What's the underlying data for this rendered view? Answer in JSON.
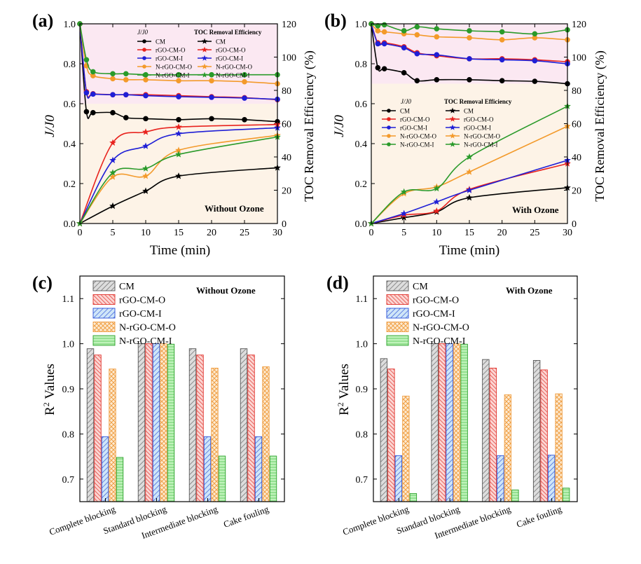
{
  "panels": [
    {
      "id": "a",
      "label": "(a)",
      "annotation": "Without Ozone",
      "legend_header_left": "J/J0",
      "legend_header_right": "TOC Removal Efficiency",
      "chart_data": {
        "type": "line",
        "xlabel": "Time (min)",
        "ylabel": "J/J0",
        "y2label": "TOC Removal Efficiency (%)",
        "xlim": [
          0,
          30
        ],
        "ylim": [
          0,
          1.0
        ],
        "y2lim": [
          0,
          120
        ],
        "xticks": [
          0,
          5,
          10,
          15,
          20,
          25,
          30
        ],
        "yticks": [
          "0.0",
          "0.2",
          "0.4",
          "0.6",
          "0.8",
          "1.0"
        ],
        "y2ticks": [
          0,
          20,
          40,
          60,
          80,
          100,
          120
        ],
        "flux": [
          {
            "name": "CM",
            "color": "#000000",
            "x": [
              0,
              1,
              2,
              5,
              7,
              10,
              15,
              20,
              25,
              30
            ],
            "y": [
              1.0,
              0.56,
              0.555,
              0.555,
              0.53,
              0.525,
              0.52,
              0.525,
              0.52,
              0.51
            ]
          },
          {
            "name": "rGO-CM-O",
            "color": "#e8231e",
            "x": [
              0,
              1,
              2,
              5,
              7,
              10,
              15,
              20,
              25,
              30
            ],
            "y": [
              1.0,
              0.66,
              0.65,
              0.645,
              0.645,
              0.645,
              0.64,
              0.635,
              0.63,
              0.62
            ]
          },
          {
            "name": "rGO-CM-I",
            "color": "#1f1fd6",
            "x": [
              0,
              1,
              2,
              5,
              7,
              10,
              15,
              20,
              25,
              30
            ],
            "y": [
              1.0,
              0.655,
              0.648,
              0.645,
              0.645,
              0.64,
              0.635,
              0.632,
              0.628,
              0.622
            ]
          },
          {
            "name": "N-rGO-CM-O",
            "color": "#f39a2b",
            "x": [
              0,
              1,
              2,
              5,
              7,
              10,
              15,
              20,
              25,
              30
            ],
            "y": [
              1.0,
              0.79,
              0.74,
              0.725,
              0.72,
              0.72,
              0.715,
              0.715,
              0.71,
              0.7
            ]
          },
          {
            "name": "N-rGO-CM-I",
            "color": "#2a9a2a",
            "x": [
              0,
              1,
              2,
              5,
              7,
              10,
              15,
              20,
              25,
              30
            ],
            "y": [
              1.0,
              0.82,
              0.76,
              0.75,
              0.75,
              0.745,
              0.745,
              0.745,
              0.745,
              0.745
            ]
          }
        ],
        "toc": [
          {
            "name": "CM",
            "color": "#000000",
            "x": [
              0,
              5,
              10,
              15,
              30
            ],
            "y": [
              0,
              10.5,
              19.5,
              28.5,
              33.5
            ]
          },
          {
            "name": "rGO-CM-O",
            "color": "#e8231e",
            "x": [
              0,
              5,
              10,
              15,
              30
            ],
            "y": [
              0,
              48.5,
              55,
              58,
              59.5
            ]
          },
          {
            "name": "rGO-CM-I",
            "color": "#1f1fd6",
            "x": [
              0,
              5,
              10,
              15,
              30
            ],
            "y": [
              0,
              38,
              46.5,
              54,
              57.5
            ]
          },
          {
            "name": "N-rGO-CM-O",
            "color": "#f39a2b",
            "x": [
              0,
              5,
              10,
              15,
              30
            ],
            "y": [
              0,
              28,
              28.5,
              44,
              53
            ]
          },
          {
            "name": "N-rGO-CM-I",
            "color": "#2a9a2a",
            "x": [
              0,
              5,
              10,
              15,
              30
            ],
            "y": [
              0,
              30.5,
              33,
              41.5,
              52
            ]
          }
        ]
      }
    },
    {
      "id": "b",
      "label": "(b)",
      "annotation": "With Ozone",
      "legend_header_left": "J/J0",
      "legend_header_right": "TOC Removal Efficiency",
      "chart_data": {
        "type": "line",
        "xlabel": "Time (min)",
        "ylabel": "J/J0",
        "y2label": "TOC Removal Efficiency (%)",
        "xlim": [
          0,
          30
        ],
        "ylim": [
          0,
          1.0
        ],
        "y2lim": [
          0,
          120
        ],
        "xticks": [
          0,
          5,
          10,
          15,
          20,
          25,
          30
        ],
        "yticks": [
          "0.0",
          "0.2",
          "0.4",
          "0.6",
          "0.8",
          "1.0"
        ],
        "y2ticks": [
          0,
          20,
          40,
          60,
          80,
          100,
          120
        ],
        "flux": [
          {
            "name": "CM",
            "color": "#000000",
            "x": [
              0,
              1,
              2,
              5,
              7,
              10,
              15,
              20,
              25,
              30
            ],
            "y": [
              1.0,
              0.78,
              0.775,
              0.755,
              0.715,
              0.72,
              0.72,
              0.715,
              0.712,
              0.7
            ]
          },
          {
            "name": "rGO-CM-O",
            "color": "#e8231e",
            "x": [
              0,
              1,
              2,
              5,
              7,
              10,
              15,
              20,
              25,
              30
            ],
            "y": [
              1.0,
              0.905,
              0.905,
              0.885,
              0.855,
              0.84,
              0.825,
              0.825,
              0.82,
              0.81
            ]
          },
          {
            "name": "rGO-CM-I",
            "color": "#1f1fd6",
            "x": [
              0,
              1,
              2,
              5,
              7,
              10,
              15,
              20,
              25,
              30
            ],
            "y": [
              1.0,
              0.9,
              0.9,
              0.88,
              0.85,
              0.845,
              0.825,
              0.82,
              0.815,
              0.8
            ]
          },
          {
            "name": "N-rGO-CM-O",
            "color": "#f39a2b",
            "x": [
              0,
              1,
              2,
              5,
              7,
              10,
              15,
              20,
              25,
              30
            ],
            "y": [
              1.0,
              0.965,
              0.96,
              0.95,
              0.945,
              0.935,
              0.93,
              0.92,
              0.93,
              0.92
            ]
          },
          {
            "name": "N-rGO-CM-I",
            "color": "#2a9a2a",
            "x": [
              0,
              1,
              2,
              5,
              7,
              10,
              15,
              20,
              25,
              30
            ],
            "y": [
              1.0,
              0.99,
              0.995,
              0.965,
              0.985,
              0.975,
              0.965,
              0.96,
              0.95,
              0.97
            ]
          }
        ],
        "toc": [
          {
            "name": "CM",
            "color": "#000000",
            "x": [
              0,
              5,
              10,
              15,
              30
            ],
            "y": [
              0,
              3.5,
              7,
              15.5,
              21.5
            ]
          },
          {
            "name": "rGO-CM-O",
            "color": "#e8231e",
            "x": [
              0,
              5,
              10,
              15,
              30
            ],
            "y": [
              0,
              5,
              7.5,
              20.5,
              36
            ]
          },
          {
            "name": "rGO-CM-I",
            "color": "#1f1fd6",
            "x": [
              0,
              5,
              10,
              15,
              30
            ],
            "y": [
              0,
              6,
              13,
              20,
              38
            ]
          },
          {
            "name": "N-rGO-CM-O",
            "color": "#f39a2b",
            "x": [
              0,
              5,
              10,
              15,
              30
            ],
            "y": [
              0,
              18,
              22,
              31,
              58.5
            ]
          },
          {
            "name": "N-rGO-CM-I",
            "color": "#2a9a2a",
            "x": [
              0,
              5,
              10,
              15,
              30
            ],
            "y": [
              0,
              19,
              21,
              40,
              70.5
            ]
          }
        ]
      }
    },
    {
      "id": "c",
      "label": "(c)",
      "annotation": "Without Ozone",
      "chart_data": {
        "type": "bar",
        "ylabel": "R2 Values",
        "ylabel_main": "R",
        "ylabel_sup": "2",
        "ylabel_rest": " Values",
        "ylim": [
          0.65,
          1.15
        ],
        "yticks": [
          "0.7",
          "0.8",
          "0.9",
          "1.0",
          "1.1"
        ],
        "categories": [
          "Complete blocking",
          "Standard blocking",
          "Intermediate blocking",
          "Cake fouling"
        ],
        "series": [
          {
            "name": "CM",
            "values": [
              0.989,
              1.0,
              0.989,
              0.989
            ]
          },
          {
            "name": "rGO-CM-O",
            "values": [
              0.975,
              1.0,
              0.975,
              0.975
            ]
          },
          {
            "name": "rGO-CM-I",
            "values": [
              0.794,
              1.0,
              0.794,
              0.794
            ]
          },
          {
            "name": "N-rGO-CM-O",
            "values": [
              0.944,
              1.0,
              0.946,
              0.949
            ]
          },
          {
            "name": "N-rGO-CM-I",
            "values": [
              0.748,
              0.999,
              0.751,
              0.751
            ]
          }
        ]
      }
    },
    {
      "id": "d",
      "label": "(d)",
      "annotation": "With Ozone",
      "chart_data": {
        "type": "bar",
        "ylabel": "R2 Values",
        "ylabel_main": "R",
        "ylabel_sup": "2",
        "ylabel_rest": " Values",
        "ylim": [
          0.65,
          1.15
        ],
        "yticks": [
          "0.7",
          "0.8",
          "0.9",
          "1.0",
          "1.1"
        ],
        "categories": [
          "Complete blocking",
          "Standard blocking",
          "Intermediate blocking",
          "Cake fouling"
        ],
        "series": [
          {
            "name": "CM",
            "values": [
              0.967,
              1.0,
              0.965,
              0.963
            ]
          },
          {
            "name": "rGO-CM-O",
            "values": [
              0.944,
              1.0,
              0.946,
              0.942
            ]
          },
          {
            "name": "rGO-CM-I",
            "values": [
              0.752,
              1.0,
              0.752,
              0.753
            ]
          },
          {
            "name": "N-rGO-CM-O",
            "values": [
              0.884,
              1.0,
              0.887,
              0.889
            ]
          },
          {
            "name": "N-rGO-CM-I",
            "values": [
              0.668,
              0.999,
              0.676,
              0.68
            ]
          }
        ]
      }
    }
  ],
  "series_styles": [
    {
      "name": "CM",
      "stroke": "#555555",
      "fill": "#d4d4d4",
      "hatch": "gray"
    },
    {
      "name": "rGO-CM-O",
      "stroke": "#e0302a",
      "fill": "#fbd3d0",
      "hatch": "red"
    },
    {
      "name": "rGO-CM-I",
      "stroke": "#2a4fd8",
      "fill": "#c9e3f7",
      "hatch": "blue"
    },
    {
      "name": "N-rGO-CM-O",
      "stroke": "#f0a046",
      "fill": "#fde8cd",
      "hatch": "orange"
    },
    {
      "name": "N-rGO-CM-I",
      "stroke": "#2aa02a",
      "fill": "#b7efb2",
      "hatch": "green"
    }
  ]
}
